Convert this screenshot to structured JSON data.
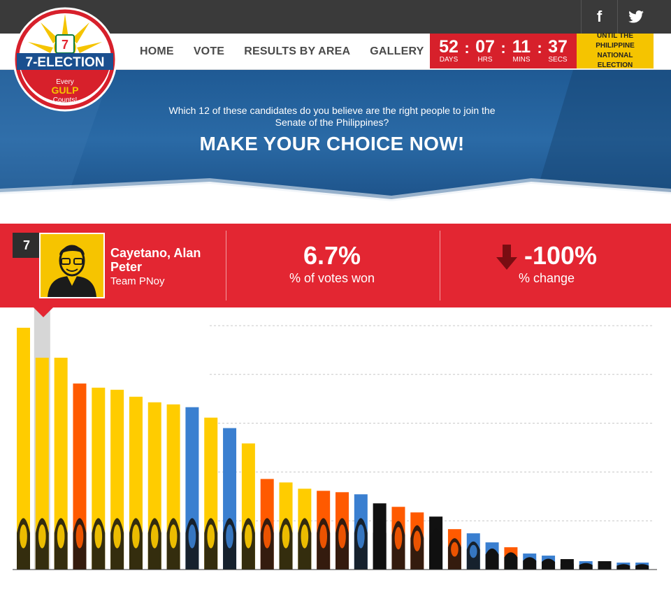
{
  "social": {
    "facebook": "f",
    "twitter": "t"
  },
  "logo": {
    "brand": "7-ELECTION",
    "tagline1": "Every",
    "tagline2": "GULP",
    "tagline3": "Counts!"
  },
  "nav": [
    "HOME",
    "VOTE",
    "RESULTS BY AREA",
    "GALLERY"
  ],
  "countdown": {
    "days": "52",
    "days_label": "DAYS",
    "hrs": "07",
    "hrs_label": "HRS",
    "mins": "11",
    "mins_label": "MINS",
    "secs": "37",
    "secs_label": "SECS",
    "until": "UNTIL THE PHILIPPINE NATIONAL ELECTION"
  },
  "hero": {
    "subtitle": "Which 12 of these candidates do you believe are the right people to join the Senate of the Philippines?",
    "title": "MAKE YOUR CHOICE NOW!"
  },
  "selected": {
    "rank": "7",
    "name": "Cayetano, Alan Peter",
    "team": "Team PNoy",
    "votes_value": "6.7%",
    "votes_label": "% of votes won",
    "change_value": "-100%",
    "change_label": "% change"
  },
  "colors": {
    "yellow": "#ffcc00",
    "orange": "#ff5a00",
    "blue": "#3a7fd0",
    "black": "#111111",
    "red": "#e32632"
  },
  "chart_data": {
    "type": "bar",
    "selected_index": 1,
    "series": [
      {
        "color": "yellow",
        "value": 347
      },
      {
        "color": "yellow",
        "value": 304
      },
      {
        "color": "yellow",
        "value": 304
      },
      {
        "color": "orange",
        "value": 267
      },
      {
        "color": "yellow",
        "value": 261
      },
      {
        "color": "yellow",
        "value": 258
      },
      {
        "color": "yellow",
        "value": 248
      },
      {
        "color": "yellow",
        "value": 240
      },
      {
        "color": "yellow",
        "value": 237
      },
      {
        "color": "blue",
        "value": 233
      },
      {
        "color": "yellow",
        "value": 218
      },
      {
        "color": "blue",
        "value": 203
      },
      {
        "color": "yellow",
        "value": 181
      },
      {
        "color": "orange",
        "value": 130
      },
      {
        "color": "yellow",
        "value": 125
      },
      {
        "color": "yellow",
        "value": 116
      },
      {
        "color": "orange",
        "value": 113
      },
      {
        "color": "orange",
        "value": 111
      },
      {
        "color": "blue",
        "value": 108
      },
      {
        "color": "black",
        "value": 95
      },
      {
        "color": "orange",
        "value": 90
      },
      {
        "color": "orange",
        "value": 82
      },
      {
        "color": "black",
        "value": 76
      },
      {
        "color": "orange",
        "value": 58
      },
      {
        "color": "blue",
        "value": 52
      },
      {
        "color": "blue",
        "value": 39
      },
      {
        "color": "orange",
        "value": 32
      },
      {
        "color": "blue",
        "value": 23
      },
      {
        "color": "blue",
        "value": 20
      },
      {
        "color": "black",
        "value": 15
      },
      {
        "color": "blue",
        "value": 12
      },
      {
        "color": "black",
        "value": 12
      },
      {
        "color": "blue",
        "value": 10
      },
      {
        "color": "blue",
        "value": 10
      }
    ],
    "ylim": [
      0,
      350
    ],
    "gridlines": 5,
    "grid": true
  }
}
